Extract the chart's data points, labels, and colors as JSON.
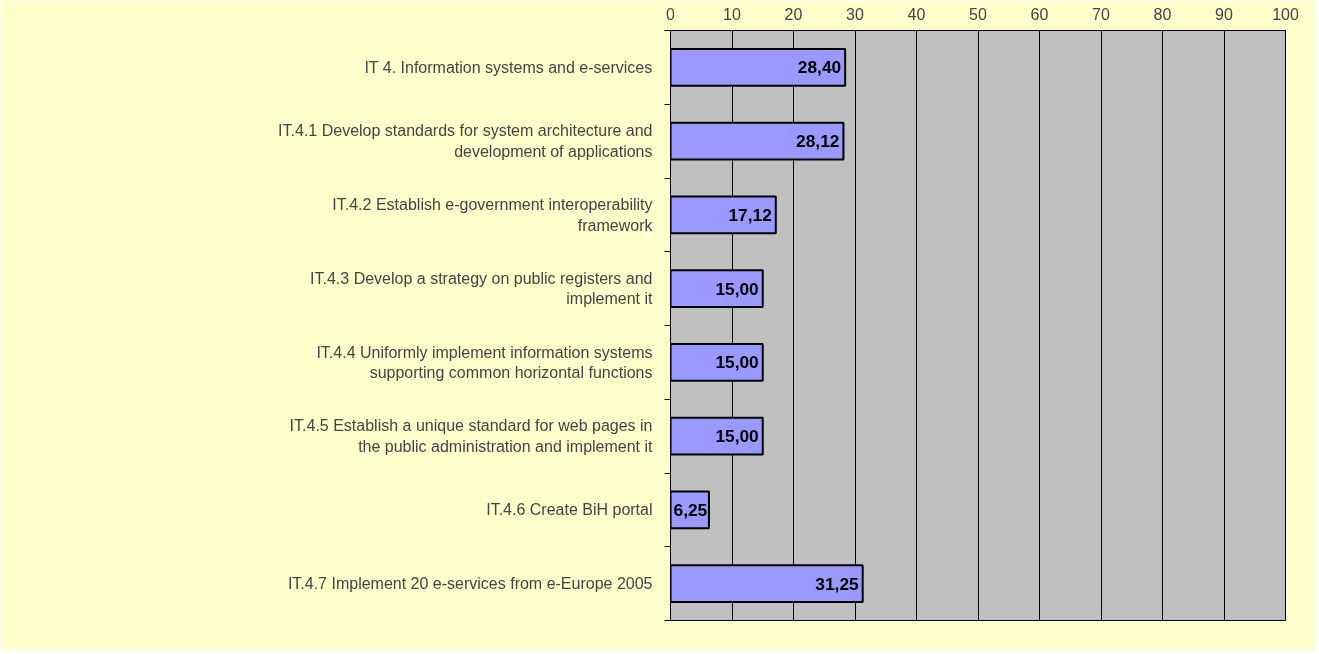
{
  "chart_data": {
    "type": "bar",
    "orientation": "horizontal",
    "categories": [
      "IT 4. Information systems and e-services",
      "IT.4.1 Develop standards for system architecture and development of applications",
      "IT.4.2 Establish e-government interoperability framework",
      "IT.4.3 Develop a strategy on public registers and implement it",
      "IT.4.4 Uniformly implement information systems supporting common horizontal functions",
      "IT.4.5 Establish a unique standard for web pages in the public administration and implement it",
      "IT.4.6 Create BiH portal",
      "IT.4.7 Implement 20 e-services from e-Europe 2005"
    ],
    "values": [
      28.4,
      28.12,
      17.12,
      15.0,
      15.0,
      15.0,
      6.25,
      31.25
    ],
    "value_labels": [
      "28,40",
      "28,12",
      "17,12",
      "15,00",
      "15,00",
      "15,00",
      "6,25",
      "31,25"
    ],
    "color": "#9999ff",
    "xlim": [
      0,
      100
    ],
    "xticks": [
      0,
      10,
      20,
      30,
      40,
      50,
      60,
      70,
      80,
      90,
      100
    ],
    "grid": "x"
  }
}
